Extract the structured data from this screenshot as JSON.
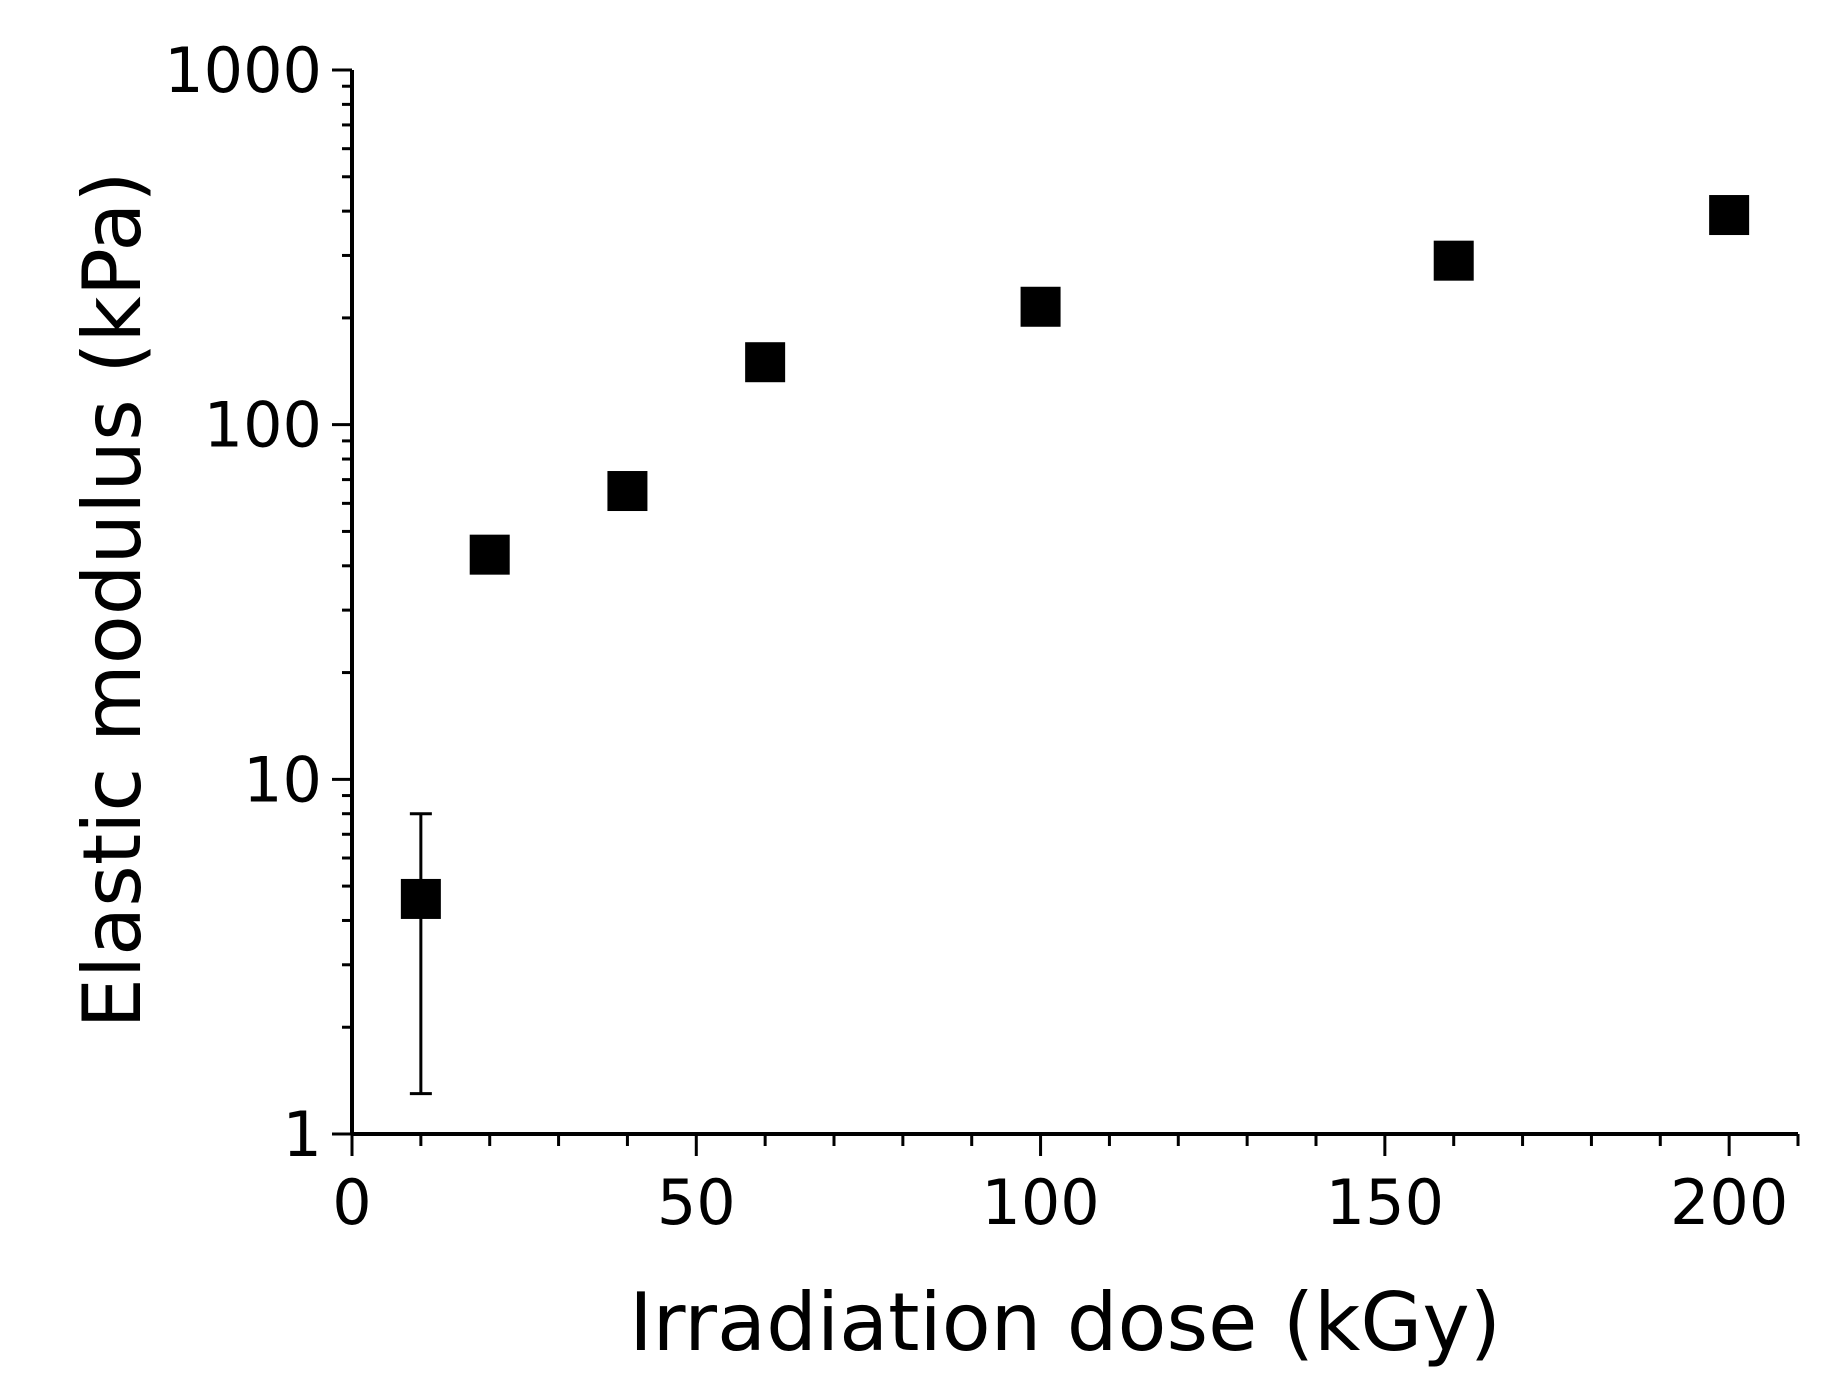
{
  "chart_data": {
    "type": "scatter",
    "title": "",
    "xlabel": "Irradiation dose (kGy)",
    "ylabel": "Elastic modulus (kPa)",
    "xlim": [
      0,
      210
    ],
    "ylim": [
      1,
      1000
    ],
    "yscale": "log",
    "grid": false,
    "legend": "none",
    "x_ticks": [
      0,
      50,
      100,
      150,
      200
    ],
    "x_tick_labels": [
      "0",
      "50",
      "100",
      "150",
      "200"
    ],
    "y_ticks": [
      1,
      10,
      100,
      1000
    ],
    "y_tick_labels": [
      "1",
      "10",
      "100",
      "1000"
    ],
    "marker_color": "#000000",
    "marker_shape": "square",
    "series": [
      {
        "x": [
          10,
          20,
          40,
          60,
          100,
          160,
          200
        ],
        "y": [
          4.6,
          43,
          65,
          150,
          215,
          290,
          390
        ],
        "error_low": [
          1.3,
          null,
          null,
          null,
          null,
          null,
          null
        ],
        "error_high": [
          8,
          null,
          null,
          null,
          null,
          null,
          null
        ]
      }
    ]
  }
}
